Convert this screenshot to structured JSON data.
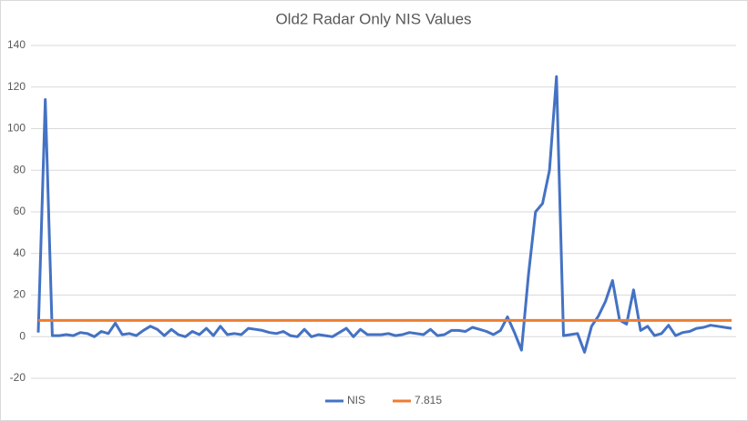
{
  "chart_data": {
    "type": "line",
    "title": "Old2 Radar Only NIS Values",
    "ylim": [
      -20,
      140
    ],
    "yticks": [
      -20,
      0,
      20,
      40,
      60,
      80,
      100,
      120,
      140
    ],
    "grid": true,
    "legend": "bottom",
    "series": [
      {
        "name": "NIS",
        "color": "#4472c4",
        "values": [
          2,
          114,
          0.5,
          0.5,
          1,
          0.5,
          2,
          1.5,
          0,
          2.5,
          1.5,
          6.5,
          1,
          1.5,
          0.5,
          3,
          5,
          3.5,
          0.5,
          3.5,
          1,
          0,
          2.5,
          1,
          4,
          0.5,
          5,
          1,
          1.5,
          1,
          4,
          3.5,
          3,
          2,
          1.5,
          2.5,
          0.5,
          0,
          3.5,
          0,
          1,
          0.5,
          0,
          2,
          4,
          0,
          3.5,
          1,
          1,
          1,
          1.5,
          0.5,
          1,
          2,
          1.5,
          1,
          3.5,
          0.5,
          1,
          3,
          3,
          2.5,
          4.5,
          3.5,
          2.5,
          1,
          3,
          9.5,
          2,
          -6.5,
          30,
          60,
          64,
          80,
          125,
          0.5,
          1,
          1.5,
          -7.5,
          5,
          10,
          17,
          27,
          8,
          6,
          22.5,
          3,
          5,
          0.5,
          1.5,
          5.5,
          0.5,
          2,
          2.5,
          4,
          4.5,
          5.5,
          5,
          4.5,
          4
        ]
      },
      {
        "name": "7.815",
        "color": "#ed7d31",
        "values": [
          7.815,
          7.815,
          7.815,
          7.815,
          7.815,
          7.815,
          7.815,
          7.815,
          7.815,
          7.815,
          7.815,
          7.815,
          7.815,
          7.815,
          7.815,
          7.815,
          7.815,
          7.815,
          7.815,
          7.815,
          7.815,
          7.815,
          7.815,
          7.815,
          7.815,
          7.815,
          7.815,
          7.815,
          7.815,
          7.815,
          7.815,
          7.815,
          7.815,
          7.815,
          7.815,
          7.815,
          7.815,
          7.815,
          7.815,
          7.815,
          7.815,
          7.815,
          7.815,
          7.815,
          7.815,
          7.815,
          7.815,
          7.815,
          7.815,
          7.815,
          7.815,
          7.815,
          7.815,
          7.815,
          7.815,
          7.815,
          7.815,
          7.815,
          7.815,
          7.815,
          7.815,
          7.815,
          7.815,
          7.815,
          7.815,
          7.815,
          7.815,
          7.815,
          7.815,
          7.815,
          7.815,
          7.815,
          7.815,
          7.815,
          7.815,
          7.815,
          7.815,
          7.815,
          7.815,
          7.815,
          7.815,
          7.815,
          7.815,
          7.815,
          7.815,
          7.815,
          7.815,
          7.815,
          7.815,
          7.815,
          7.815,
          7.815,
          7.815,
          7.815,
          7.815,
          7.815,
          7.815,
          7.815,
          7.815,
          7.815
        ]
      }
    ]
  }
}
